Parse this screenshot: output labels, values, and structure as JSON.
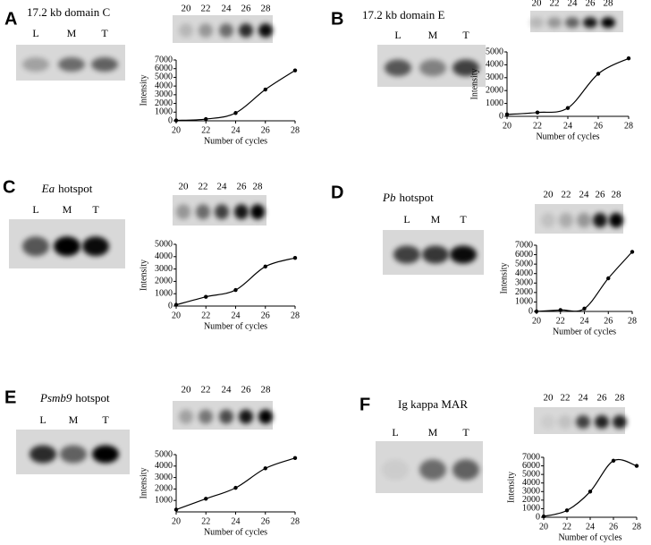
{
  "panels": [
    {
      "letter": "A",
      "title": "17.2 kb domain C",
      "lanes": [
        "L",
        "M",
        "T"
      ],
      "gel_cycles": [
        "20",
        "22",
        "24",
        "26",
        "28"
      ]
    },
    {
      "letter": "B",
      "title": "17.2 kb domain E",
      "lanes": [
        "L",
        "M",
        "T"
      ],
      "gel_cycles": [
        "20",
        "22",
        "24",
        "26",
        "28"
      ]
    },
    {
      "letter": "C",
      "title_italic": "Ea",
      "title": "hotspot",
      "lanes": [
        "L",
        "M",
        "T"
      ],
      "gel_cycles": [
        "20",
        "22",
        "24",
        "26",
        "28"
      ]
    },
    {
      "letter": "D",
      "title_italic": "Pb",
      "title": "hotspot",
      "lanes": [
        "L",
        "M",
        "T"
      ],
      "gel_cycles": [
        "20",
        "22",
        "24",
        "26",
        "28"
      ]
    },
    {
      "letter": "E",
      "title_italic": "Psmb9",
      "title": "hotspot",
      "lanes": [
        "L",
        "M",
        "T"
      ],
      "gel_cycles": [
        "20",
        "22",
        "24",
        "26",
        "28"
      ]
    },
    {
      "letter": "F",
      "title": "Ig kappa MAR",
      "lanes": [
        "L",
        "M",
        "T"
      ],
      "gel_cycles": [
        "20",
        "22",
        "24",
        "26",
        "28"
      ]
    }
  ],
  "chart_data": [
    {
      "type": "line",
      "xlabel": "Number of cycles",
      "ylabel": "Intensity",
      "x": [
        20,
        22,
        24,
        26,
        28
      ],
      "values": [
        50,
        200,
        900,
        3600,
        5800
      ],
      "color": "#000000",
      "xlim": [
        20,
        28
      ],
      "xticks": [
        20,
        22,
        24,
        26,
        28
      ],
      "ylim": [
        0,
        7000
      ],
      "yticks": [
        0,
        1000,
        2000,
        3000,
        4000,
        5000,
        6000,
        7000
      ]
    },
    {
      "type": "line",
      "xlabel": "Number of cycles",
      "ylabel": "Intensity",
      "x": [
        20,
        22,
        24,
        26,
        28
      ],
      "values": [
        150,
        300,
        650,
        3300,
        4500
      ],
      "color": "#000000",
      "xlim": [
        20,
        28
      ],
      "xticks": [
        20,
        22,
        24,
        26,
        28
      ],
      "ylim": [
        0,
        5000
      ],
      "yticks": [
        0,
        1000,
        2000,
        3000,
        4000,
        5000
      ]
    },
    {
      "type": "line",
      "xlabel": "Number of cycles",
      "ylabel": "Intensity",
      "x": [
        20,
        22,
        24,
        26,
        28
      ],
      "values": [
        100,
        750,
        1300,
        3200,
        3900
      ],
      "color": "#000000",
      "xlim": [
        20,
        28
      ],
      "xticks": [
        20,
        22,
        24,
        26,
        28
      ],
      "ylim": [
        0,
        5000
      ],
      "yticks": [
        0,
        1000,
        2000,
        3000,
        4000,
        5000
      ]
    },
    {
      "type": "line",
      "xlabel": "Number of cycles",
      "ylabel": "Intensity",
      "x": [
        20,
        22,
        24,
        26,
        28
      ],
      "values": [
        0,
        150,
        300,
        3500,
        6300
      ],
      "color": "#000000",
      "xlim": [
        20,
        28
      ],
      "xticks": [
        20,
        22,
        24,
        26,
        28
      ],
      "ylim": [
        0,
        7000
      ],
      "yticks": [
        0,
        1000,
        2000,
        3000,
        4000,
        5000,
        6000,
        7000
      ]
    },
    {
      "type": "line",
      "xlabel": "Number of cycles",
      "ylabel": "Intensity",
      "x": [
        20,
        22,
        24,
        26,
        28
      ],
      "values": [
        200,
        1150,
        2100,
        3800,
        4700
      ],
      "color": "#000000",
      "xlim": [
        20,
        28
      ],
      "xticks": [
        20,
        22,
        24,
        26,
        28
      ],
      "ylim": [
        0,
        5000
      ],
      "yticks": [
        1000,
        2000,
        3000,
        4000,
        5000
      ]
    },
    {
      "type": "line",
      "xlabel": "Number of cycles",
      "ylabel": "Intensity",
      "x": [
        20,
        22,
        24,
        26,
        28
      ],
      "values": [
        100,
        800,
        3000,
        6600,
        6000
      ],
      "color": "#000000",
      "xlim": [
        20,
        28
      ],
      "xticks": [
        20,
        22,
        24,
        26,
        28
      ],
      "ylim": [
        0,
        7000
      ],
      "yticks": [
        0,
        1000,
        2000,
        3000,
        4000,
        5000,
        6000,
        7000
      ]
    }
  ]
}
